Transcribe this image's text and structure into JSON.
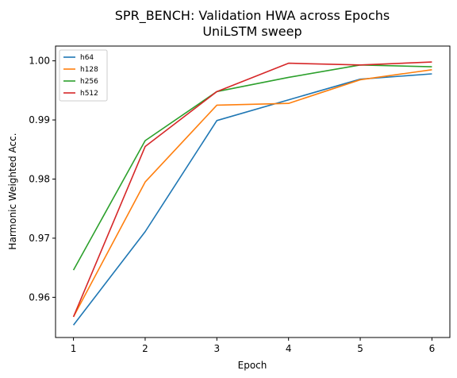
{
  "chart_data": {
    "type": "line",
    "title": "SPR_BENCH: Validation HWA across Epochs",
    "subtitle": "UniLSTM sweep",
    "xlabel": "Epoch",
    "ylabel": "Harmonic Weighted Acc.",
    "x": [
      1,
      2,
      3,
      4,
      5,
      6
    ],
    "xticks": [
      1,
      2,
      3,
      4,
      5,
      6
    ],
    "xlim": [
      0.75,
      6.25
    ],
    "yticks": [
      0.96,
      0.97,
      0.98,
      0.99,
      1.0
    ],
    "ytick_labels": [
      "0.96",
      "0.97",
      "0.98",
      "0.99",
      "1.00"
    ],
    "ylim": [
      0.9532,
      1.0025
    ],
    "grid": false,
    "legend_position": "top-left",
    "series": [
      {
        "name": "h64",
        "color": "#1f77b4",
        "values": [
          0.9553,
          0.9711,
          0.9899,
          0.9934,
          0.9969,
          0.9978
        ]
      },
      {
        "name": "h128",
        "color": "#ff7f0e",
        "values": [
          0.9567,
          0.9795,
          0.9925,
          0.9928,
          0.9968,
          0.9985
        ]
      },
      {
        "name": "h256",
        "color": "#2ca02c",
        "values": [
          0.9646,
          0.9865,
          0.9948,
          0.9972,
          0.9993,
          0.999
        ]
      },
      {
        "name": "h512",
        "color": "#d62728",
        "values": [
          0.9567,
          0.9855,
          0.9948,
          0.9996,
          0.9993,
          0.9998
        ]
      }
    ]
  }
}
